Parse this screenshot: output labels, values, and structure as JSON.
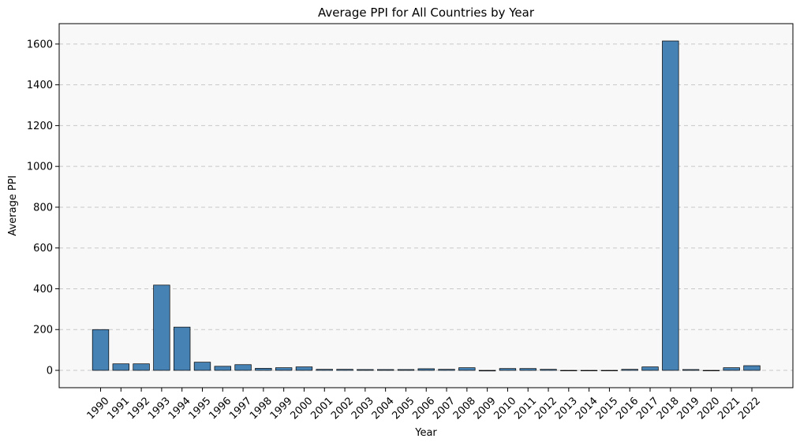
{
  "chart_data": {
    "type": "bar",
    "title": "Average PPI for All Countries by Year",
    "xlabel": "Year",
    "ylabel": "Average PPI",
    "categories": [
      "1990",
      "1991",
      "1992",
      "1993",
      "1994",
      "1995",
      "1996",
      "1997",
      "1998",
      "1999",
      "2000",
      "2001",
      "2002",
      "2003",
      "2004",
      "2005",
      "2006",
      "2007",
      "2008",
      "2009",
      "2010",
      "2011",
      "2012",
      "2013",
      "2014",
      "2015",
      "2016",
      "2017",
      "2018",
      "2019",
      "2020",
      "2021",
      "2022"
    ],
    "values": [
      200,
      32,
      32,
      418,
      212,
      40,
      20,
      28,
      10,
      13,
      17,
      5,
      5,
      4,
      4,
      4,
      8,
      5,
      13,
      -3,
      9,
      9,
      5,
      -2,
      -2,
      -2,
      5,
      17,
      1615,
      4,
      0,
      13,
      23
    ],
    "ylim": [
      -85,
      1700
    ],
    "yticks": [
      0,
      200,
      400,
      600,
      800,
      1000,
      1200,
      1400,
      1600
    ],
    "grid": "y-dashed",
    "colors": {
      "bar": "#4682b4",
      "bar_edge": "#000000",
      "plot_bg": "#f8f8f8",
      "grid": "#c8c8c8"
    }
  }
}
